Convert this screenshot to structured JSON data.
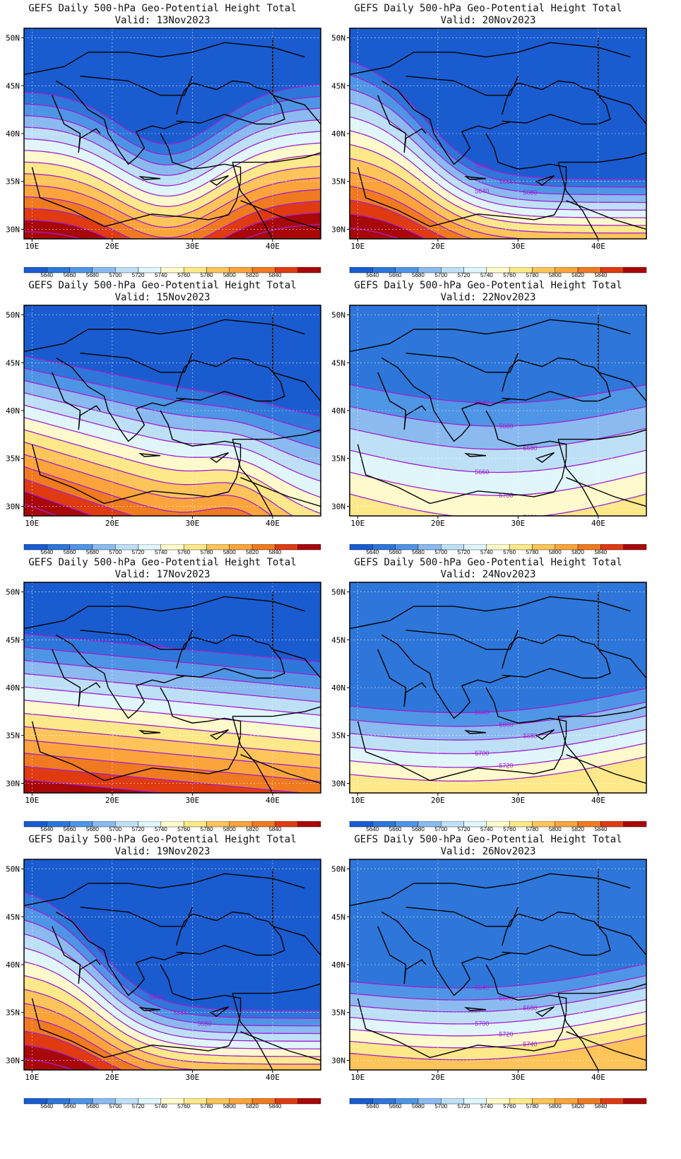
{
  "page": {
    "panels": [
      {
        "title": "GEFS Daily 500-hPa Geo-Potential Height Total",
        "valid": "Valid: 13Nov2023"
      },
      {
        "title": "GEFS Daily 500-hPa Geo-Potential Height Total",
        "valid": "Valid: 20Nov2023"
      },
      {
        "title": "GEFS Daily 500-hPa Geo-Potential Height Total",
        "valid": "Valid: 15Nov2023"
      },
      {
        "title": "GEFS Daily 500-hPa Geo-Potential Height Total",
        "valid": "Valid: 22Nov2023"
      },
      {
        "title": "GEFS Daily 500-hPa Geo-Potential Height Total",
        "valid": "Valid: 17Nov2023"
      },
      {
        "title": "GEFS Daily 500-hPa Geo-Potential Height Total",
        "valid": "Valid: 24Nov2023"
      },
      {
        "title": "GEFS Daily 500-hPa Geo-Potential Height Total",
        "valid": "Valid: 19Nov2023"
      },
      {
        "title": "GEFS Daily 500-hPa Geo-Potential Height Total",
        "valid": "Valid: 26Nov2023"
      }
    ],
    "lat_labels": [
      "50N",
      "45N",
      "40N",
      "35N",
      "30N"
    ],
    "lon_labels": [
      "10E",
      "20E",
      "30E",
      "40E"
    ],
    "colorbar": {
      "labels": [
        "5640",
        "5660",
        "5680",
        "5700",
        "5720",
        "5740",
        "5760",
        "5780",
        "5800",
        "5820",
        "5840"
      ],
      "colors": [
        "#1a5ccf",
        "#2e76d9",
        "#4f95e6",
        "#8abaf0",
        "#bee0f7",
        "#e0f6fb",
        "#fffacc",
        "#fde88a",
        "#fdc45a",
        "#fba43c",
        "#f07a20",
        "#e03a10",
        "#a80808"
      ]
    },
    "contour_color": "#a020d0",
    "contour_labels": [
      [],
      [
        "5640",
        "5660",
        "5680",
        "5640"
      ],
      [],
      [
        "5640",
        "5660",
        "5680",
        "5660",
        "5700",
        "5680",
        "5720",
        "5740",
        "5760"
      ],
      [
        "5820"
      ],
      [
        "5640",
        "5660",
        "5680",
        "5700",
        "5720"
      ],
      [
        "5640",
        "5660",
        "5680"
      ],
      [
        "5640",
        "5660",
        "5680",
        "5700",
        "5720",
        "5740"
      ]
    ]
  }
}
